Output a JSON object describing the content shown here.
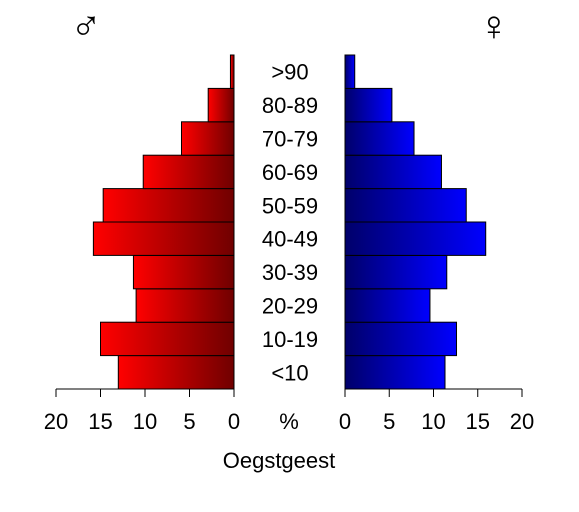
{
  "chart_data": {
    "type": "bar",
    "orientation": "horizontal-population-pyramid",
    "title": "",
    "xlabel": "Oegstgeest",
    "center_label": "%",
    "male_symbol": "♂",
    "female_symbol": "♀",
    "categories": [
      "<10",
      "10-19",
      "20-29",
      "30-39",
      "40-49",
      "50-59",
      "60-69",
      "70-79",
      "80-89",
      ">90"
    ],
    "xlim": [
      0,
      20
    ],
    "ticks": [
      "0",
      "5",
      "10",
      "15",
      "20"
    ],
    "series": [
      {
        "side": "left",
        "color": "#ff0000",
        "color_dark": "#700000",
        "values": [
          13.0,
          15.0,
          11.0,
          11.3,
          15.8,
          14.7,
          10.2,
          5.9,
          2.9,
          0.4
        ]
      },
      {
        "side": "right",
        "color": "#0000ff",
        "color_dark": "#00006a",
        "values": [
          11.3,
          12.6,
          9.6,
          11.5,
          15.9,
          13.7,
          10.9,
          7.8,
          5.3,
          1.1
        ]
      }
    ]
  }
}
